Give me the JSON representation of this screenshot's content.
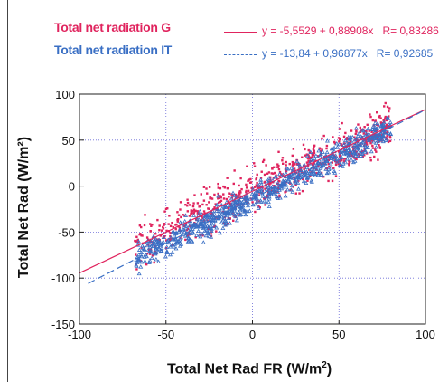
{
  "chart_data": {
    "type": "scatter",
    "xlabel_main": "Total Net Rad FR (W/m",
    "xlabel_sup": "2",
    "xlabel_end": ")",
    "ylabel": "Total Net Rad (W/m²)",
    "xlim": [
      -100,
      100
    ],
    "ylim": [
      -150,
      100
    ],
    "xticks": [
      "-100",
      "-50",
      "0",
      "50",
      "100"
    ],
    "xtick_values": [
      -100,
      -50,
      0,
      50,
      100
    ],
    "yticks": [
      "100",
      "50",
      "0",
      "-50",
      "-100",
      "-150"
    ],
    "ytick_values": [
      100,
      50,
      0,
      -50,
      -100,
      -150
    ],
    "grid": "dotted",
    "legend_position": "top",
    "series": [
      {
        "name": "Total net radiation G",
        "color": "#e0245e",
        "marker": "square",
        "equation": "y = -5,5529 + 0,88908x",
        "r_label": "R= 0,83286",
        "fit": {
          "intercept": -5.5529,
          "slope": 0.88908
        },
        "line_style": "solid",
        "scatter_spread": 22
      },
      {
        "name": "Total net radiation IT",
        "color": "#3a6fc4",
        "marker": "triangle",
        "equation": "y = -13,84 + 0,96877x",
        "r_label": "R= 0,92685",
        "fit": {
          "intercept": -13.84,
          "slope": 0.96877
        },
        "line_style": "dashed",
        "scatter_spread": 14
      }
    ]
  }
}
